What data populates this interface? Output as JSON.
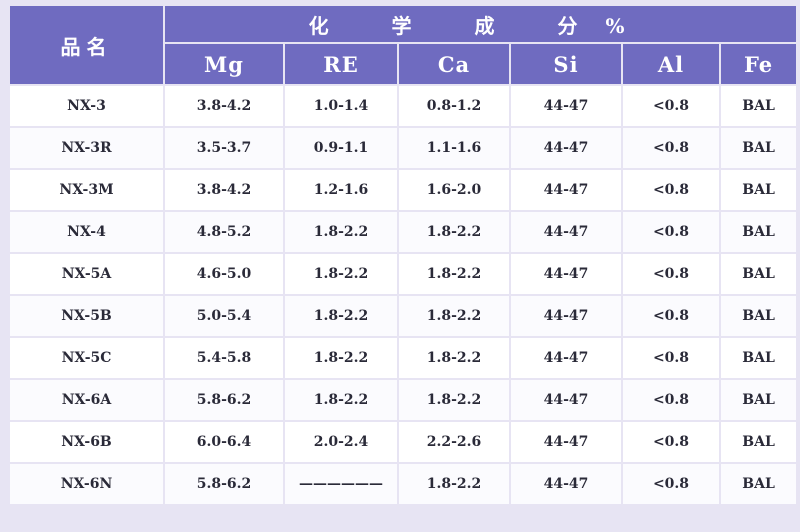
{
  "table": {
    "header": {
      "product_name": "品名",
      "group": "化 学 成 分%",
      "columns": [
        "Mg",
        "RE",
        "Ca",
        "Si",
        "Al",
        "Fe"
      ]
    },
    "rows": [
      {
        "name": "NX-3",
        "mg": "3.8-4.2",
        "re": "1.0-1.4",
        "ca": "0.8-1.2",
        "si": "44-47",
        "al": "<0.8",
        "fe": "BAL"
      },
      {
        "name": "NX-3R",
        "mg": "3.5-3.7",
        "re": "0.9-1.1",
        "ca": "1.1-1.6",
        "si": "44-47",
        "al": "<0.8",
        "fe": "BAL"
      },
      {
        "name": "NX-3M",
        "mg": "3.8-4.2",
        "re": "1.2-1.6",
        "ca": "1.6-2.0",
        "si": "44-47",
        "al": "<0.8",
        "fe": "BAL"
      },
      {
        "name": "NX-4",
        "mg": "4.8-5.2",
        "re": "1.8-2.2",
        "ca": "1.8-2.2",
        "si": "44-47",
        "al": "<0.8",
        "fe": "BAL"
      },
      {
        "name": "NX-5A",
        "mg": "4.6-5.0",
        "re": "1.8-2.2",
        "ca": "1.8-2.2",
        "si": "44-47",
        "al": "<0.8",
        "fe": "BAL"
      },
      {
        "name": "NX-5B",
        "mg": "5.0-5.4",
        "re": "1.8-2.2",
        "ca": "1.8-2.2",
        "si": "44-47",
        "al": "<0.8",
        "fe": "BAL"
      },
      {
        "name": "NX-5C",
        "mg": "5.4-5.8",
        "re": "1.8-2.2",
        "ca": "1.8-2.2",
        "si": "44-47",
        "al": "<0.8",
        "fe": "BAL"
      },
      {
        "name": "NX-6A",
        "mg": "5.8-6.2",
        "re": "1.8-2.2",
        "ca": "1.8-2.2",
        "si": "44-47",
        "al": "<0.8",
        "fe": "BAL"
      },
      {
        "name": "NX-6B",
        "mg": "6.0-6.4",
        "re": "2.0-2.4",
        "ca": "2.2-2.6",
        "si": "44-47",
        "al": "<0.8",
        "fe": "BAL"
      },
      {
        "name": "NX-6N",
        "mg": "5.8-6.2",
        "re": "——————",
        "ca": "1.8-2.2",
        "si": "44-47",
        "al": "<0.8",
        "fe": "BAL"
      }
    ]
  }
}
